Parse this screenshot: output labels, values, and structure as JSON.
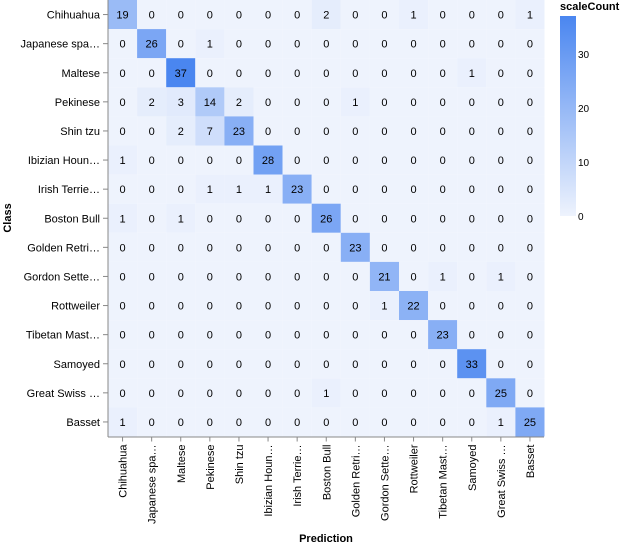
{
  "chart_data": {
    "type": "heatmap",
    "xlabel": "Prediction",
    "ylabel": "Class",
    "rows": [
      "Chihuahua",
      "Japanese spa…",
      "Maltese",
      "Pekinese",
      "Shin tzu",
      "Ibizian Houn…",
      "Irish Terrie…",
      "Boston Bull",
      "Golden Retri…",
      "Gordon Sette…",
      "Rottweiler",
      "Tibetan Mast…",
      "Samoyed",
      "Great Swiss …",
      "Basset"
    ],
    "columns": [
      "Chihuahua",
      "Japanese spa…",
      "Maltese",
      "Pekinese",
      "Shin tzu",
      "Ibizian Houn…",
      "Irish Terrie…",
      "Boston Bull",
      "Golden Retri…",
      "Gordon Sette…",
      "Rottweiler",
      "Tibetan Mast…",
      "Samoyed",
      "Great Swiss …",
      "Basset"
    ],
    "values": [
      [
        19,
        0,
        0,
        0,
        0,
        0,
        0,
        2,
        0,
        0,
        1,
        0,
        0,
        0,
        1
      ],
      [
        0,
        26,
        0,
        1,
        0,
        0,
        0,
        0,
        0,
        0,
        0,
        0,
        0,
        0,
        0
      ],
      [
        0,
        0,
        37,
        0,
        0,
        0,
        0,
        0,
        0,
        0,
        0,
        0,
        1,
        0,
        0
      ],
      [
        0,
        2,
        3,
        14,
        2,
        0,
        0,
        0,
        1,
        0,
        0,
        0,
        0,
        0,
        0
      ],
      [
        0,
        0,
        2,
        7,
        23,
        0,
        0,
        0,
        0,
        0,
        0,
        0,
        0,
        0,
        0
      ],
      [
        1,
        0,
        0,
        0,
        0,
        28,
        0,
        0,
        0,
        0,
        0,
        0,
        0,
        0,
        0
      ],
      [
        0,
        0,
        0,
        1,
        1,
        1,
        23,
        0,
        0,
        0,
        0,
        0,
        0,
        0,
        0
      ],
      [
        1,
        0,
        1,
        0,
        0,
        0,
        0,
        26,
        0,
        0,
        0,
        0,
        0,
        0,
        0
      ],
      [
        0,
        0,
        0,
        0,
        0,
        0,
        0,
        0,
        23,
        0,
        0,
        0,
        0,
        0,
        0
      ],
      [
        0,
        0,
        0,
        0,
        0,
        0,
        0,
        0,
        0,
        21,
        0,
        1,
        0,
        1,
        0
      ],
      [
        0,
        0,
        0,
        0,
        0,
        0,
        0,
        0,
        0,
        1,
        22,
        0,
        0,
        0,
        0
      ],
      [
        0,
        0,
        0,
        0,
        0,
        0,
        0,
        0,
        0,
        0,
        0,
        23,
        0,
        0,
        0
      ],
      [
        0,
        0,
        0,
        0,
        0,
        0,
        0,
        0,
        0,
        0,
        0,
        0,
        33,
        0,
        0
      ],
      [
        0,
        0,
        0,
        0,
        0,
        0,
        0,
        1,
        0,
        0,
        0,
        0,
        0,
        25,
        0
      ],
      [
        1,
        0,
        0,
        0,
        0,
        0,
        0,
        0,
        0,
        0,
        0,
        0,
        0,
        1,
        25
      ]
    ],
    "color_scale": {
      "domain": [
        0,
        37
      ],
      "range": [
        "#eef3fd",
        "#4a86f0"
      ]
    },
    "legend": {
      "title": "scaleCount",
      "ticks": [
        0,
        10,
        20,
        30
      ],
      "placement": "right"
    }
  }
}
